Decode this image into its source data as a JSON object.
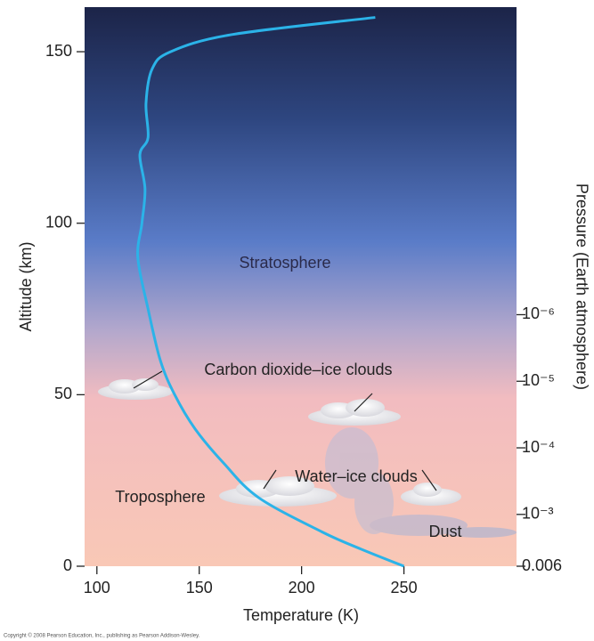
{
  "chart_data": {
    "type": "line",
    "x_label": "Temperature (K)",
    "y_label": "Altitude (km)",
    "y2_label": "Pressure (Earth atmosphere)",
    "x": [
      250,
      229,
      210,
      179,
      162,
      148,
      138,
      131,
      125,
      120,
      122,
      123.5,
      121,
      125,
      124,
      127,
      136,
      166,
      236
    ],
    "series": [
      {
        "color": "#2bb3e8",
        "values": [
          0,
          5,
          10,
          20,
          30,
          40,
          50,
          60,
          75,
          90,
          100,
          110,
          120,
          125,
          135,
          145,
          150,
          155,
          160
        ]
      }
    ],
    "xlim": [
      94,
      305
    ],
    "xticks": [
      100,
      150,
      200,
      250
    ],
    "ylim": [
      0,
      163
    ],
    "yticks": [
      0,
      50,
      100,
      150
    ],
    "y2scale": "log",
    "y2lim": [
      0.006,
      2.4e-11
    ],
    "y2ticks": [
      0.006,
      {
        "value": 0.001,
        "label": "10⁻³"
      },
      {
        "value": 0.0001,
        "label": "10⁻⁴"
      },
      {
        "value": 1e-05,
        "label": "10⁻⁵"
      },
      {
        "value": 1e-06,
        "label": "10⁻⁶"
      }
    ],
    "annotations": [
      "Stratosphere",
      "Troposphere",
      "Carbon dioxide–ice clouds",
      "Water–ice clouds",
      "Dust"
    ],
    "copyright": "Copyright © 2008 Pearson Education, Inc., publishing as Pearson Addison-Wesley."
  }
}
